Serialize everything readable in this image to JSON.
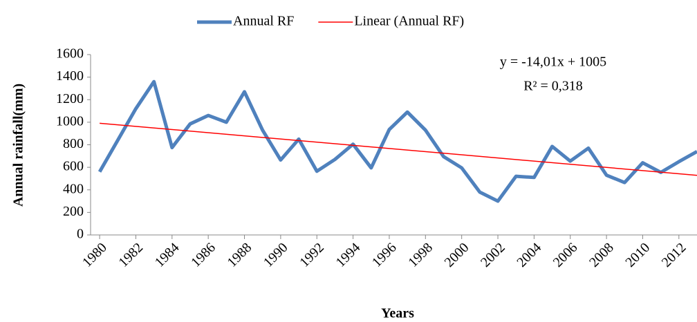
{
  "chart_data": {
    "type": "line",
    "x_label": "Years",
    "y_label": "Annual rainfall(mm)",
    "annotations": [
      "y = -14,01x + 1005",
      "R² = 0,318"
    ],
    "series": [
      {
        "name": "Annual RF",
        "color": "#4f81bd",
        "x": [
          1980,
          1981,
          1982,
          1983,
          1984,
          1985,
          1986,
          1987,
          1988,
          1989,
          1990,
          1991,
          1992,
          1993,
          1994,
          1995,
          1996,
          1997,
          1998,
          1999,
          2000,
          2001,
          2002,
          2003,
          2004,
          2005,
          2006,
          2007,
          2008,
          2009,
          2010,
          2011,
          2012,
          2013
        ],
        "values": [
          560,
          840,
          1120,
          1360,
          775,
          985,
          1060,
          1000,
          1270,
          930,
          665,
          850,
          565,
          670,
          805,
          595,
          935,
          1090,
          930,
          695,
          595,
          380,
          300,
          520,
          510,
          785,
          655,
          770,
          530,
          465,
          640,
          555,
          650,
          740
        ]
      },
      {
        "name": "Linear (Annual RF)",
        "color": "#ff0000",
        "x": [
          1980,
          2013
        ],
        "values": [
          991,
          529
        ]
      }
    ],
    "xlim": [
      1979.5,
      2013
    ],
    "xticks": [
      1980,
      1982,
      1984,
      1986,
      1988,
      1990,
      1992,
      1994,
      1996,
      1998,
      2000,
      2002,
      2004,
      2006,
      2008,
      2010,
      2012
    ],
    "ylim": [
      0,
      1600
    ],
    "yticks": [
      0,
      200,
      400,
      600,
      800,
      1000,
      1200,
      1400,
      1600
    ],
    "grid": false,
    "legend": "top"
  }
}
